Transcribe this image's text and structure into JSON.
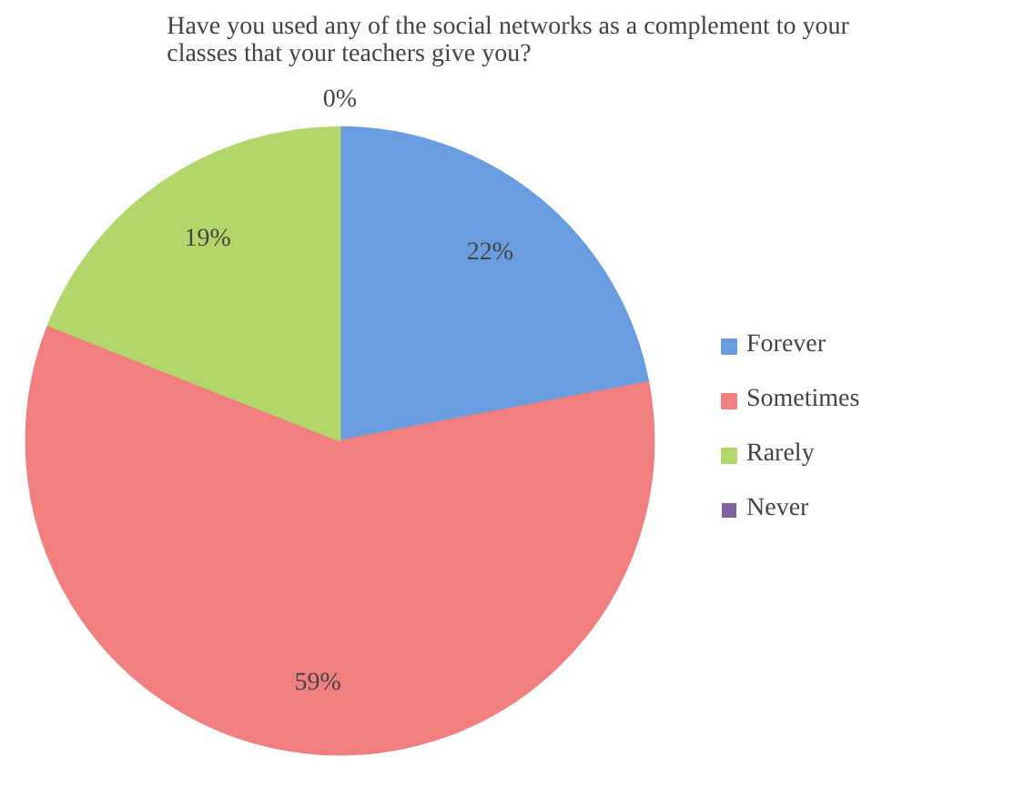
{
  "chart_data": {
    "type": "pie",
    "title": "Have you used any of the social networks as a complement to your classes that your teachers give you?",
    "categories": [
      "Forever",
      "Sometimes",
      "Rarely",
      "Never"
    ],
    "values": [
      22,
      59,
      19,
      0
    ],
    "colors": [
      "#6a9ce0",
      "#f27f7f",
      "#b3d66a",
      "#8064a2"
    ],
    "value_labels": [
      "22%",
      "59%",
      "19%",
      "0%"
    ],
    "legend": "right"
  }
}
